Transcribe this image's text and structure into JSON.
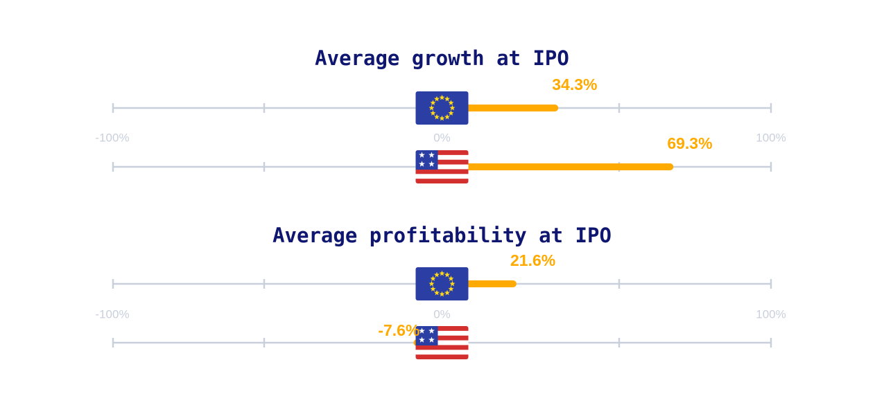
{
  "colors": {
    "title": "#0f1670",
    "axis": "#c9d0dc",
    "tick_label": "#c9d0dc",
    "bar": "#ffaa00",
    "value_label": "#ffaa00",
    "eu_blue": "#2a3ea3",
    "eu_star": "#ffd91a",
    "us_red": "#d42f2f",
    "us_white": "#ffffff",
    "us_blue": "#2a3ea3"
  },
  "chart_data": [
    {
      "type": "bar",
      "title": "Average growth at IPO",
      "xlim": [
        -100,
        100
      ],
      "tick_labels": [
        "-100%",
        "0%",
        "100%"
      ],
      "series": [
        {
          "name": "EU",
          "icon": "eu-flag-icon",
          "value": 34.3,
          "label": "34.3%"
        },
        {
          "name": "US",
          "icon": "us-flag-icon",
          "value": 69.3,
          "label": "69.3%"
        }
      ]
    },
    {
      "type": "bar",
      "title": "Average profitability at IPO",
      "xlim": [
        -100,
        100
      ],
      "tick_labels": [
        "-100%",
        "0%",
        "100%"
      ],
      "series": [
        {
          "name": "EU",
          "icon": "eu-flag-icon",
          "value": 21.6,
          "label": "21.6%"
        },
        {
          "name": "US",
          "icon": "us-flag-icon",
          "value": -7.6,
          "label": "-7.6%"
        }
      ]
    }
  ]
}
